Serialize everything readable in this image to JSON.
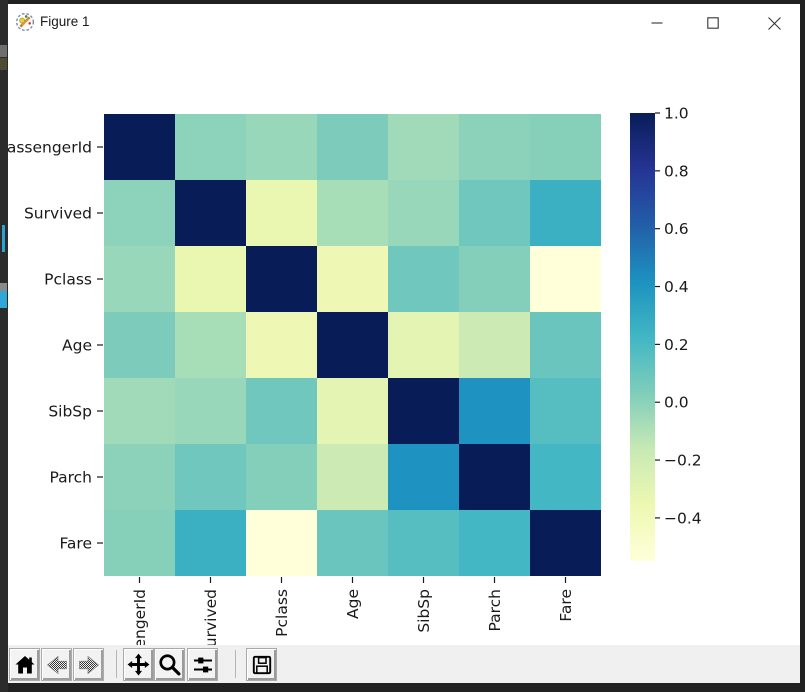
{
  "window": {
    "title": "Figure 1",
    "icon": "matplotlib-logo-icon",
    "controls": {
      "minimize": "minimize",
      "maximize": "maximize",
      "close": "close"
    }
  },
  "colors": {
    "frame": "#212121",
    "canvas_bg": "#ffffff",
    "toolbar_bg": "#f0f0f0",
    "tick_text": "#1a1a1a",
    "accent_blue_fragment": "#2aa3d4"
  },
  "toolbar": {
    "buttons": [
      {
        "name": "home",
        "icon": "home-icon",
        "disabled": false
      },
      {
        "name": "back",
        "icon": "back-arrow-icon",
        "disabled": true
      },
      {
        "name": "forward",
        "icon": "forward-arrow-icon",
        "disabled": true
      },
      {
        "name": "pan",
        "icon": "pan-arrows-icon",
        "disabled": false
      },
      {
        "name": "zoom",
        "icon": "zoom-magnifier-icon",
        "disabled": false
      },
      {
        "name": "configure-subplots",
        "icon": "sliders-icon",
        "disabled": false
      },
      {
        "name": "save",
        "icon": "save-floppy-icon",
        "disabled": false
      }
    ]
  },
  "chart_data": {
    "type": "heatmap",
    "title": "",
    "labels": [
      "PassengerId",
      "Survived",
      "Pclass",
      "Age",
      "SibSp",
      "Parch",
      "Fare"
    ],
    "matrix": [
      [
        1.0,
        -0.005,
        -0.035,
        0.037,
        -0.058,
        -0.002,
        0.013
      ],
      [
        -0.005,
        1.0,
        -0.338,
        -0.077,
        -0.035,
        0.082,
        0.257
      ],
      [
        -0.035,
        -0.338,
        1.0,
        -0.369,
        0.083,
        0.018,
        -0.549
      ],
      [
        0.037,
        -0.077,
        -0.369,
        1.0,
        -0.308,
        -0.189,
        0.096
      ],
      [
        -0.058,
        -0.035,
        0.083,
        -0.308,
        1.0,
        0.415,
        0.16
      ],
      [
        -0.002,
        0.082,
        0.018,
        -0.189,
        0.415,
        1.0,
        0.216
      ],
      [
        0.013,
        0.257,
        -0.549,
        0.096,
        0.16,
        0.216,
        1.0
      ]
    ],
    "colormap_name": "YlGnBu",
    "colormap_stops": [
      "#ffffd9",
      "#edf8b1",
      "#c7e9b4",
      "#7fcdbb",
      "#41b6c4",
      "#1d91c0",
      "#225ea8",
      "#253494",
      "#081d58"
    ],
    "vmin": -0.549,
    "vmax": 1.0,
    "x_tick_rotation": 90,
    "grid": false,
    "colorbar": {
      "position": "right",
      "ticks": [
        1.0,
        0.8,
        0.6,
        0.4,
        0.2,
        0.0,
        -0.2,
        -0.4
      ],
      "tick_labels": [
        "1.0",
        "0.8",
        "0.6",
        "0.4",
        "0.2",
        "0.0",
        "−0.2",
        "−0.4"
      ]
    }
  }
}
